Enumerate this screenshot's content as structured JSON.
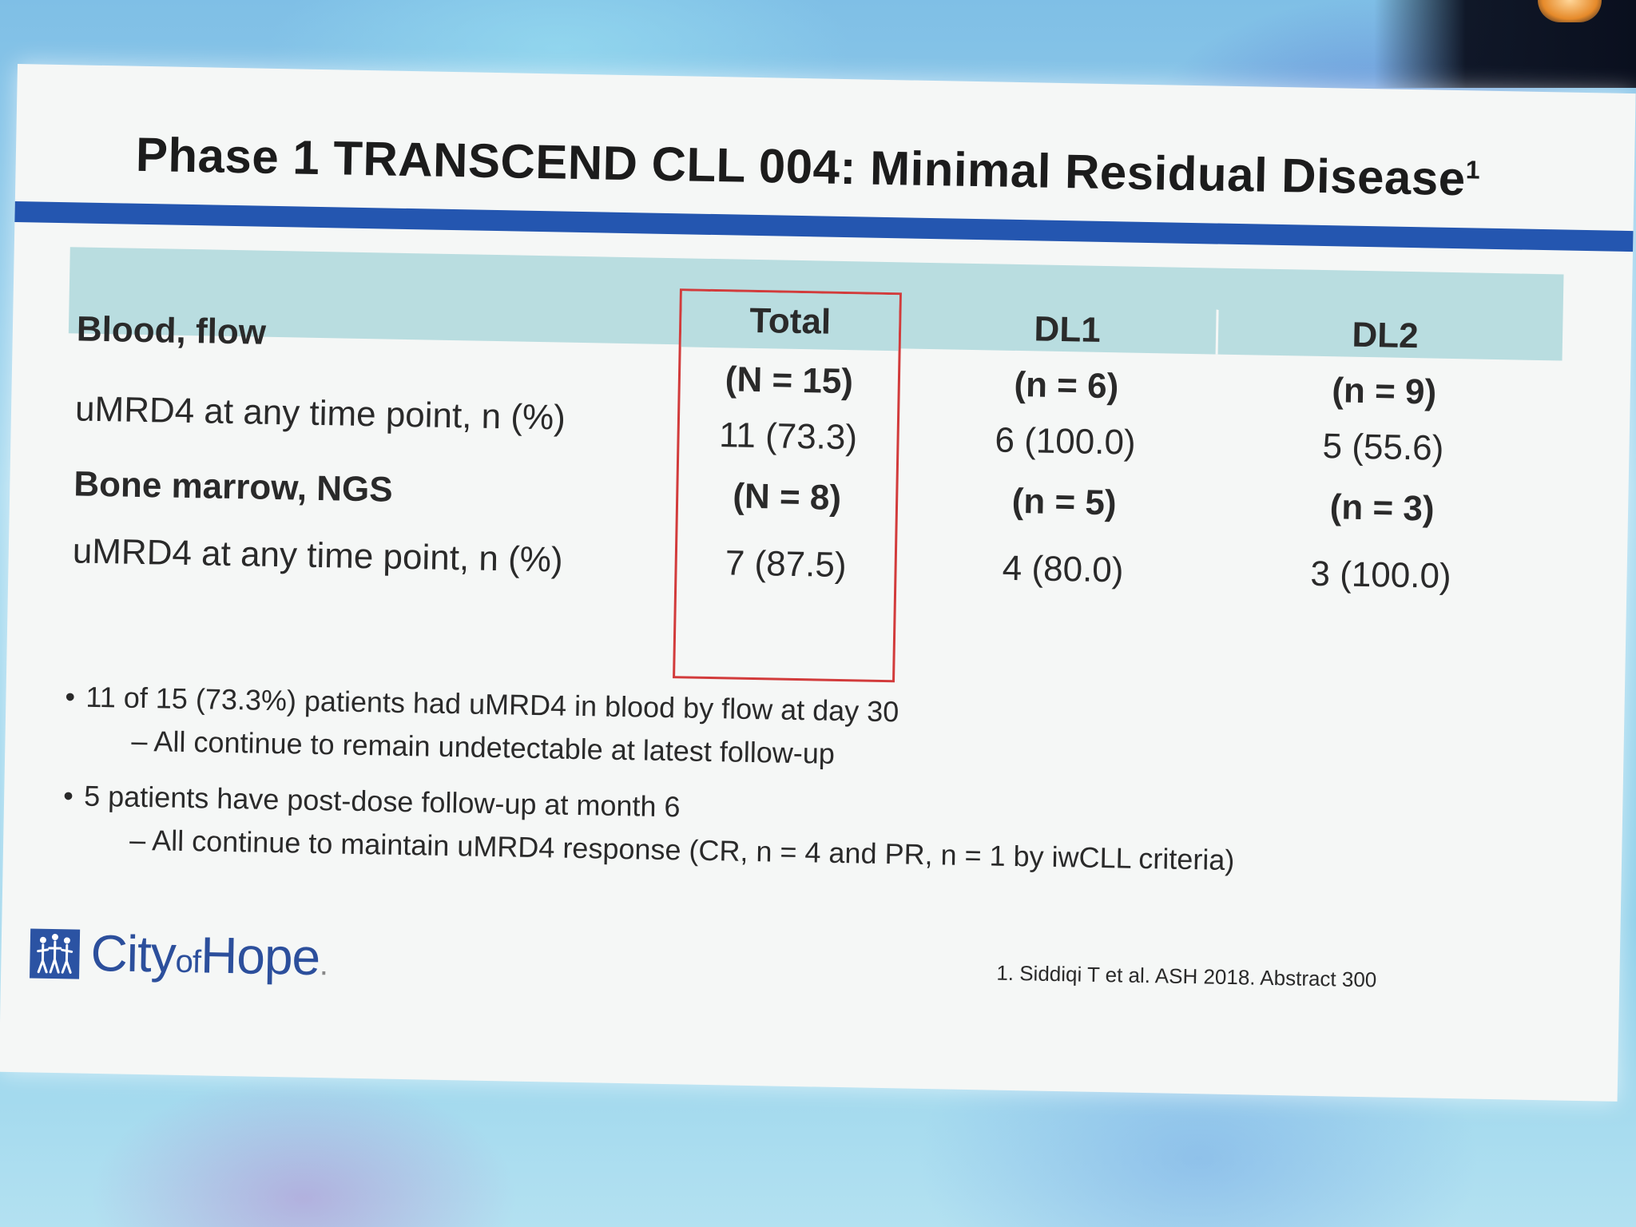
{
  "slide": {
    "title": "Phase 1 TRANSCEND CLL 004: Minimal Residual Disease",
    "title_sup": "1"
  },
  "table": {
    "columns": [
      "Total",
      "DL1",
      "DL2"
    ],
    "sections": [
      {
        "heading": "Blood, flow",
        "n_row": [
          "(N = 15)",
          "(n = 6)",
          "(n = 9)"
        ],
        "metric_label": "uMRD4 at any time point, n (%)",
        "values": [
          "11 (73.3)",
          "6 (100.0)",
          "5 (55.6)"
        ]
      },
      {
        "heading": "Bone marrow, NGS",
        "n_row": [
          "(N = 8)",
          "(n = 5)",
          "(n = 3)"
        ],
        "metric_label": "uMRD4 at any time point, n (%)",
        "values": [
          "7 (87.5)",
          "4 (80.0)",
          "3 (100.0)"
        ]
      }
    ],
    "highlight_color": "#d23b3b"
  },
  "bullets": [
    {
      "text": "11 of 15 (73.3%) patients had uMRD4 in blood by flow at day 30",
      "sub": "– All continue to remain undetectable at latest follow-up"
    },
    {
      "text": "5 patients have post-dose follow-up at month 6",
      "sub": "– All continue to maintain uMRD4 response (CR, n = 4 and PR, n = 1 by iwCLL criteria)"
    }
  ],
  "footer": {
    "logo_city": "City",
    "logo_of": "of",
    "logo_hope": "Hope",
    "logo_dot": ".",
    "reference": "1. Siddiqi T et al. ASH 2018. Abstract 300"
  },
  "colors": {
    "title_bar": "#2456b0",
    "header_band": "#b9dde0",
    "logo_blue": "#2b53a3"
  }
}
